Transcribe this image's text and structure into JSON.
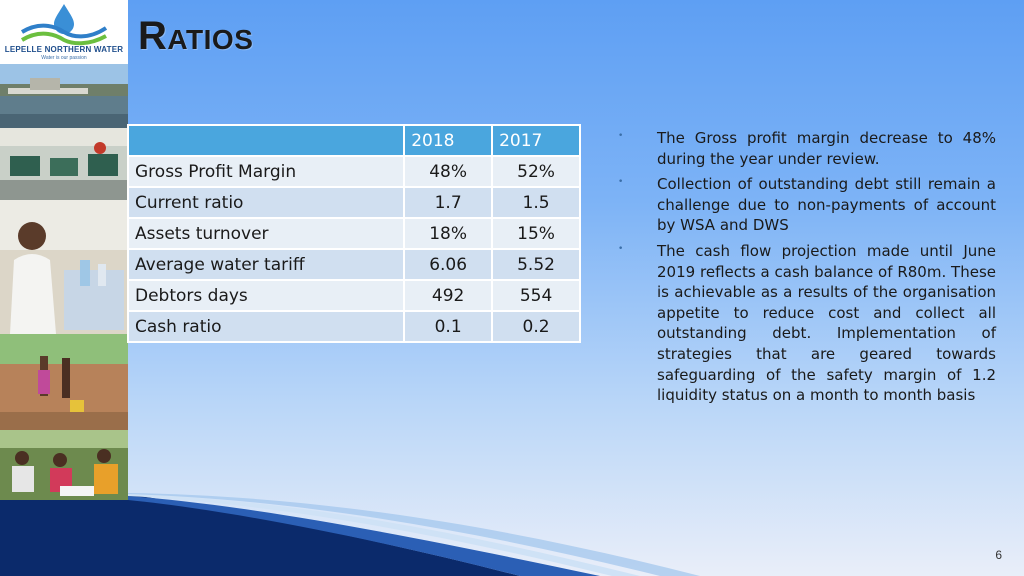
{
  "logo": {
    "name": "LEPELLE NORTHERN WATER",
    "tagline": "Water is our passion"
  },
  "title": "Ratios",
  "table": {
    "headers": [
      "",
      "2018",
      "2017"
    ],
    "rows": [
      [
        "Gross Profit Margin",
        "48%",
        "52%"
      ],
      [
        "Current ratio",
        "1.7",
        "1.5"
      ],
      [
        "Assets turnover",
        "18%",
        "15%"
      ],
      [
        "Average water tariff",
        "6.06",
        "5.52"
      ],
      [
        "Debtors days",
        "492",
        "554"
      ],
      [
        "Cash ratio",
        "0.1",
        "0.2"
      ]
    ]
  },
  "bullets": [
    "The Gross profit margin decrease to 48% during the year under review.",
    "Collection of outstanding debt still remain a challenge due to non-payments of account by WSA and DWS",
    "The cash flow projection made until June 2019 reflects a cash balance of R80m. These is achievable as a results of the organisation appetite to reduce cost and collect all outstanding debt. Implementation of strategies that are geared towards safeguarding of the safety margin of 1.2  liquidity status on a month to month basis"
  ],
  "bullet_symbol": "•",
  "page_number": "6",
  "colors": {
    "header_blue": "#4aa6de",
    "row_light": "#e8eff6",
    "row_dark": "#d0dff0",
    "background_top": "#5e9ff3"
  }
}
